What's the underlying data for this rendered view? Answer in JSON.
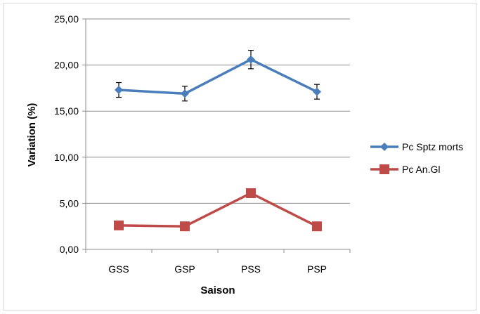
{
  "chart_data": {
    "type": "line",
    "title": "",
    "xlabel": "Saison",
    "ylabel": "Variation (%)",
    "categories": [
      "GSS",
      "GSP",
      "PSS",
      "PSP"
    ],
    "ylim": [
      0,
      25
    ],
    "yticks": [
      "0,00",
      "5,00",
      "10,00",
      "15,00",
      "20,00",
      "25,00"
    ],
    "ytick_values": [
      0,
      5,
      10,
      15,
      20,
      25
    ],
    "grid": true,
    "legend_position": "right",
    "series": [
      {
        "name": "Pc Sptz morts",
        "values": [
          17.3,
          16.9,
          20.6,
          17.1
        ],
        "error": [
          0.8,
          0.8,
          1.0,
          0.8
        ],
        "color": "#4a7ebb",
        "marker": "diamond"
      },
      {
        "name": "Pc An.Gl",
        "values": [
          2.6,
          2.5,
          6.1,
          2.5
        ],
        "color": "#be4b48",
        "marker": "square"
      }
    ]
  }
}
